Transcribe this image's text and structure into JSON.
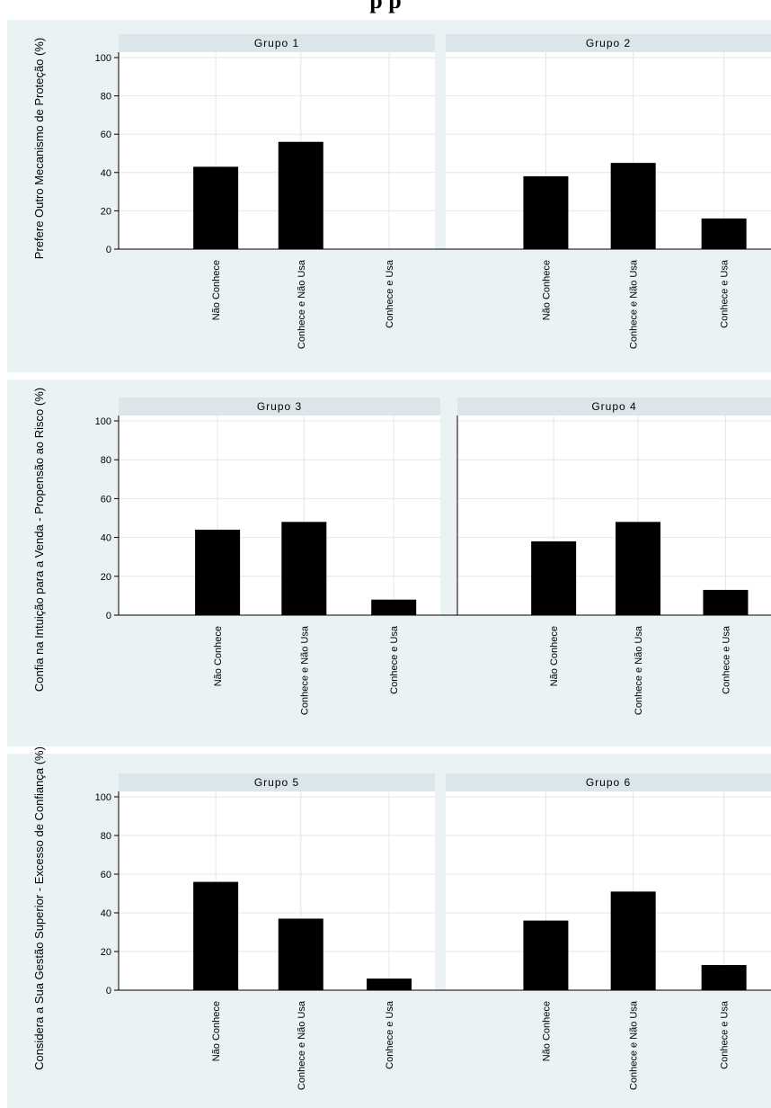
{
  "title": "p                  p",
  "colors": {
    "outer_background": "#eaf2f3",
    "plot_background": "#ffffff",
    "strip_background": "#dbe6ea",
    "bar": "#000000",
    "grid": "#e6e6e6"
  },
  "chart_data": [
    {
      "type": "bar",
      "ylabel": "Prefere Outro Mecanismo de Proteção (%)",
      "ylim": [
        0,
        100
      ],
      "yticks": [
        0,
        20,
        40,
        60,
        80,
        100
      ],
      "categories": [
        "Não Conhece",
        "Conhece e Não Usa",
        "Conhece e Usa"
      ],
      "panels": [
        {
          "label": "Grupo 1",
          "values": [
            43,
            56,
            0
          ]
        },
        {
          "label": "Grupo 2",
          "values": [
            38,
            45,
            16
          ]
        }
      ]
    },
    {
      "type": "bar",
      "ylabel": "Confia na Intuição para a Venda - Propensão ao Risco (%)",
      "ylim": [
        0,
        100
      ],
      "yticks": [
        0,
        20,
        40,
        60,
        80,
        100
      ],
      "categories": [
        "Não Conhece",
        "Conhece e Não Usa",
        "Conhece e Usa"
      ],
      "panels": [
        {
          "label": "Grupo 3",
          "values": [
            44,
            48,
            8
          ]
        },
        {
          "label": "Grupo 4",
          "values": [
            38,
            48,
            13
          ]
        }
      ]
    },
    {
      "type": "bar",
      "ylabel": "Considera a Sua Gestão Superior - Excesso de Confiança (%)",
      "ylim": [
        0,
        100
      ],
      "yticks": [
        0,
        20,
        40,
        60,
        80,
        100
      ],
      "categories": [
        "Não Conhece",
        "Conhece e Não Usa",
        "Conhece e Usa"
      ],
      "panels": [
        {
          "label": "Grupo 5",
          "values": [
            56,
            37,
            6
          ]
        },
        {
          "label": "Grupo 6",
          "values": [
            36,
            51,
            13
          ]
        }
      ]
    }
  ]
}
